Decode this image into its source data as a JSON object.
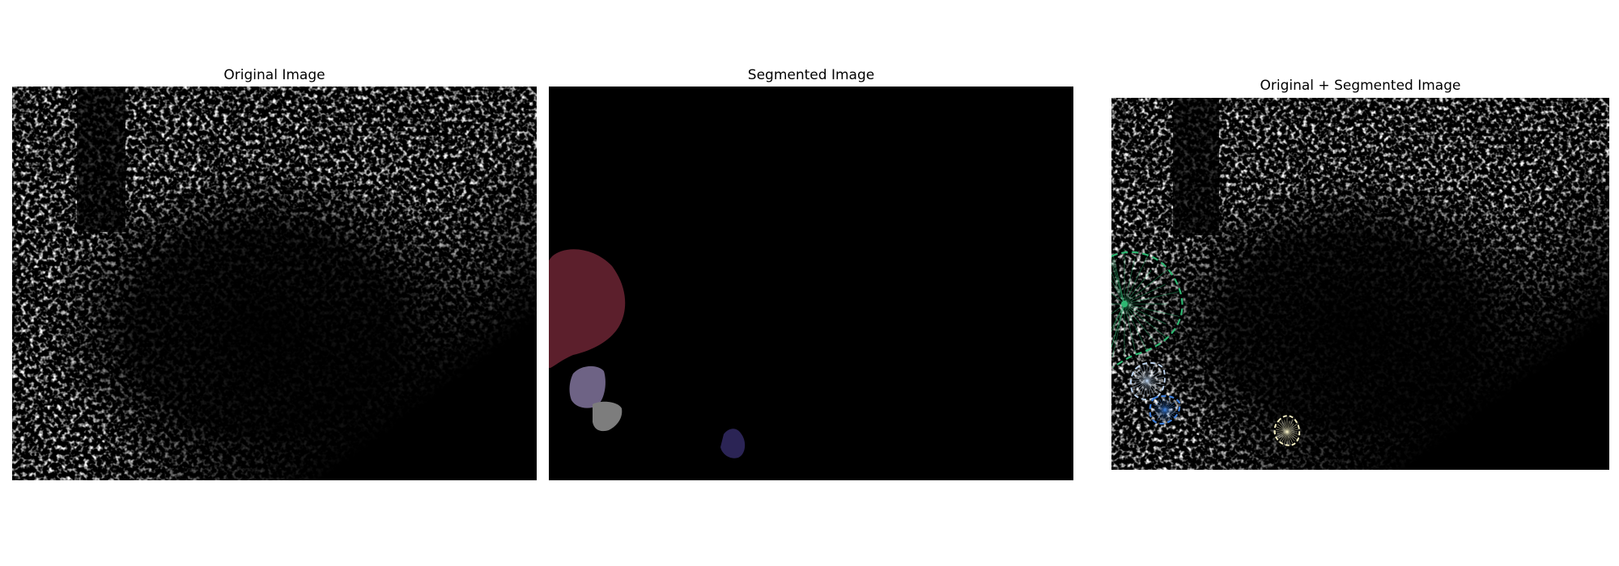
{
  "figure": {
    "panels": [
      {
        "title": "Original Image"
      },
      {
        "title": "Segmented Image"
      },
      {
        "title": "Original + Segmented Image"
      }
    ]
  },
  "segments": [
    {
      "name": "segment-red",
      "color": "#5c1f2c"
    },
    {
      "name": "segment-lavender",
      "color": "#6e6385"
    },
    {
      "name": "segment-gray",
      "color": "#7d7d7d"
    },
    {
      "name": "segment-navy",
      "color": "#2b2455"
    }
  ],
  "overlay_contours": [
    {
      "name": "contour-green",
      "color": "#2eb872"
    },
    {
      "name": "contour-lightblue",
      "color": "#bcd3ee"
    },
    {
      "name": "contour-blue",
      "color": "#3b7ddb"
    },
    {
      "name": "contour-cream",
      "color": "#f4eec2"
    }
  ]
}
